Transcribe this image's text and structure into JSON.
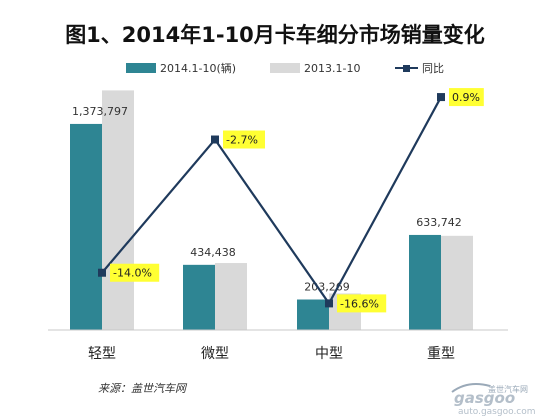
{
  "chart_data": {
    "type": "bar",
    "title": "图1、2014年1-10月卡车细分市场销量变化",
    "categories": [
      "轻型",
      "微型",
      "中型",
      "重型"
    ],
    "series": [
      {
        "name": "2014.1-10(辆)",
        "values": [
          1373797,
          434438,
          203269,
          633742
        ],
        "color": "#2e8593"
      },
      {
        "name": "2013.1-10",
        "values": [
          1597439,
          446500,
          243610,
          627909
        ],
        "color": "#d9d9d9"
      }
    ],
    "value_labels": [
      "1,373,797",
      "434,438",
      "203,269",
      "633,742"
    ],
    "line_series": {
      "name": "同比",
      "values": [
        -14.0,
        -2.7,
        -16.6,
        0.9
      ],
      "labels": [
        "-14.0%",
        "-2.7%",
        "-16.6%",
        "0.9%"
      ],
      "color": "#1f3a5c",
      "label_bg": "#ffff33"
    },
    "ylim": [
      0,
      1600000
    ],
    "line_ylim": [
      -17.5,
      1.5
    ],
    "grid": false,
    "legend_position": "top"
  },
  "source": "来源：盖世汽车网",
  "watermark": {
    "brand": "gasgoo",
    "tagline": "盖世汽车网",
    "url": "auto.gasgoo.com"
  }
}
